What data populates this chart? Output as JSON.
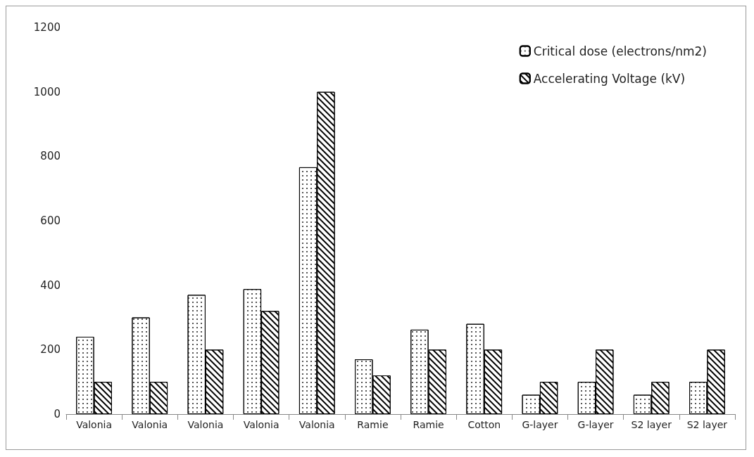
{
  "chart_data": {
    "type": "bar",
    "categories": [
      "Valonia",
      "Valonia",
      "Valonia",
      "Valonia",
      "Valonia",
      "Ramie",
      "Ramie",
      "Cotton",
      "G-layer",
      "G-layer",
      "S2 layer",
      "S2 layer"
    ],
    "series": [
      {
        "name": "Critical dose (electrons/nm2)",
        "color": "#ffffff",
        "values": [
          240,
          300,
          370,
          388,
          766,
          170,
          262,
          280,
          60,
          100,
          60,
          100
        ]
      },
      {
        "name": "Accelerating Voltage (kV)",
        "color": "#ffffff",
        "values": [
          100,
          100,
          200,
          320,
          1000,
          120,
          200,
          200,
          100,
          200,
          100,
          200
        ]
      }
    ],
    "ylim": [
      0,
      1200
    ],
    "yticks": [
      0,
      200,
      400,
      600,
      800,
      1000,
      1200
    ],
    "grid": false,
    "legend": "top right"
  }
}
